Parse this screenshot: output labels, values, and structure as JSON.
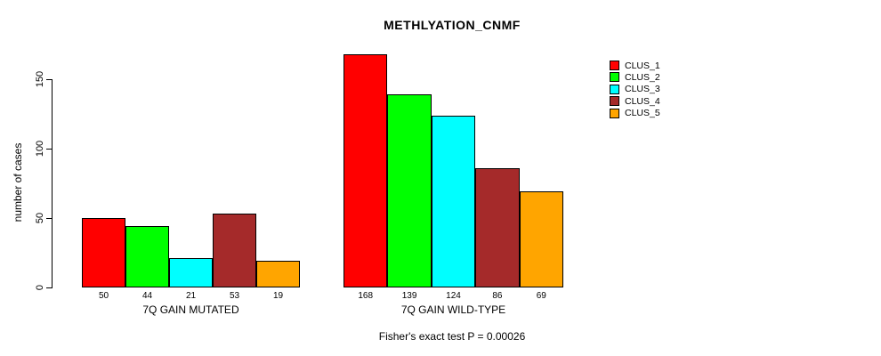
{
  "chart_data": {
    "type": "bar",
    "title": "METHLYATION_CNMF",
    "ylabel": "number of cases",
    "xlabel": "",
    "annotation": "Fisher's exact test P = 0.00026",
    "ylim": [
      0,
      150
    ],
    "yticks": [
      0,
      50,
      100,
      150
    ],
    "grid": false,
    "legend_position": "right",
    "categories": [
      "7Q GAIN MUTATED",
      "7Q GAIN WILD-TYPE"
    ],
    "series": [
      {
        "name": "CLUS_1",
        "color": "#ff0000",
        "values": [
          50,
          168
        ]
      },
      {
        "name": "CLUS_2",
        "color": "#00ff00",
        "values": [
          44,
          139
        ]
      },
      {
        "name": "CLUS_3",
        "color": "#00ffff",
        "values": [
          21,
          124
        ]
      },
      {
        "name": "CLUS_4",
        "color": "#a52a2a",
        "values": [
          53,
          86
        ]
      },
      {
        "name": "CLUS_5",
        "color": "#ffa500",
        "values": [
          19,
          69
        ]
      }
    ]
  }
}
